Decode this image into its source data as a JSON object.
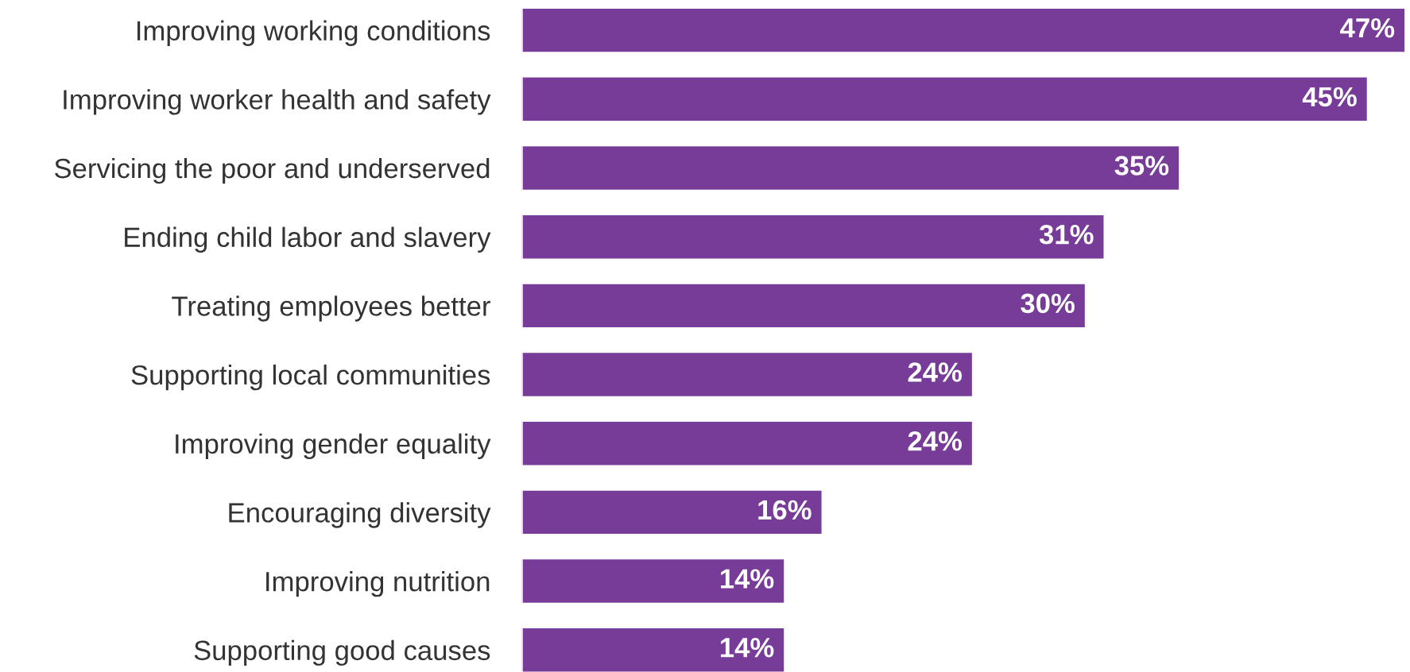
{
  "chart_data": {
    "type": "bar",
    "orientation": "horizontal",
    "categories": [
      "Improving working conditions",
      "Improving worker health and safety",
      "Servicing the poor and underserved",
      "Ending child labor and slavery",
      "Treating employees better",
      "Supporting local communities",
      "Improving gender equality",
      "Encouraging diversity",
      "Improving nutrition",
      "Supporting good causes"
    ],
    "values": [
      47,
      45,
      35,
      31,
      30,
      24,
      24,
      16,
      14,
      14
    ],
    "value_labels": [
      "47%",
      "45%",
      "35%",
      "31%",
      "30%",
      "24%",
      "24%",
      "16%",
      "14%",
      "14%"
    ],
    "color": "#763c97",
    "grid": false,
    "legend": false
  }
}
